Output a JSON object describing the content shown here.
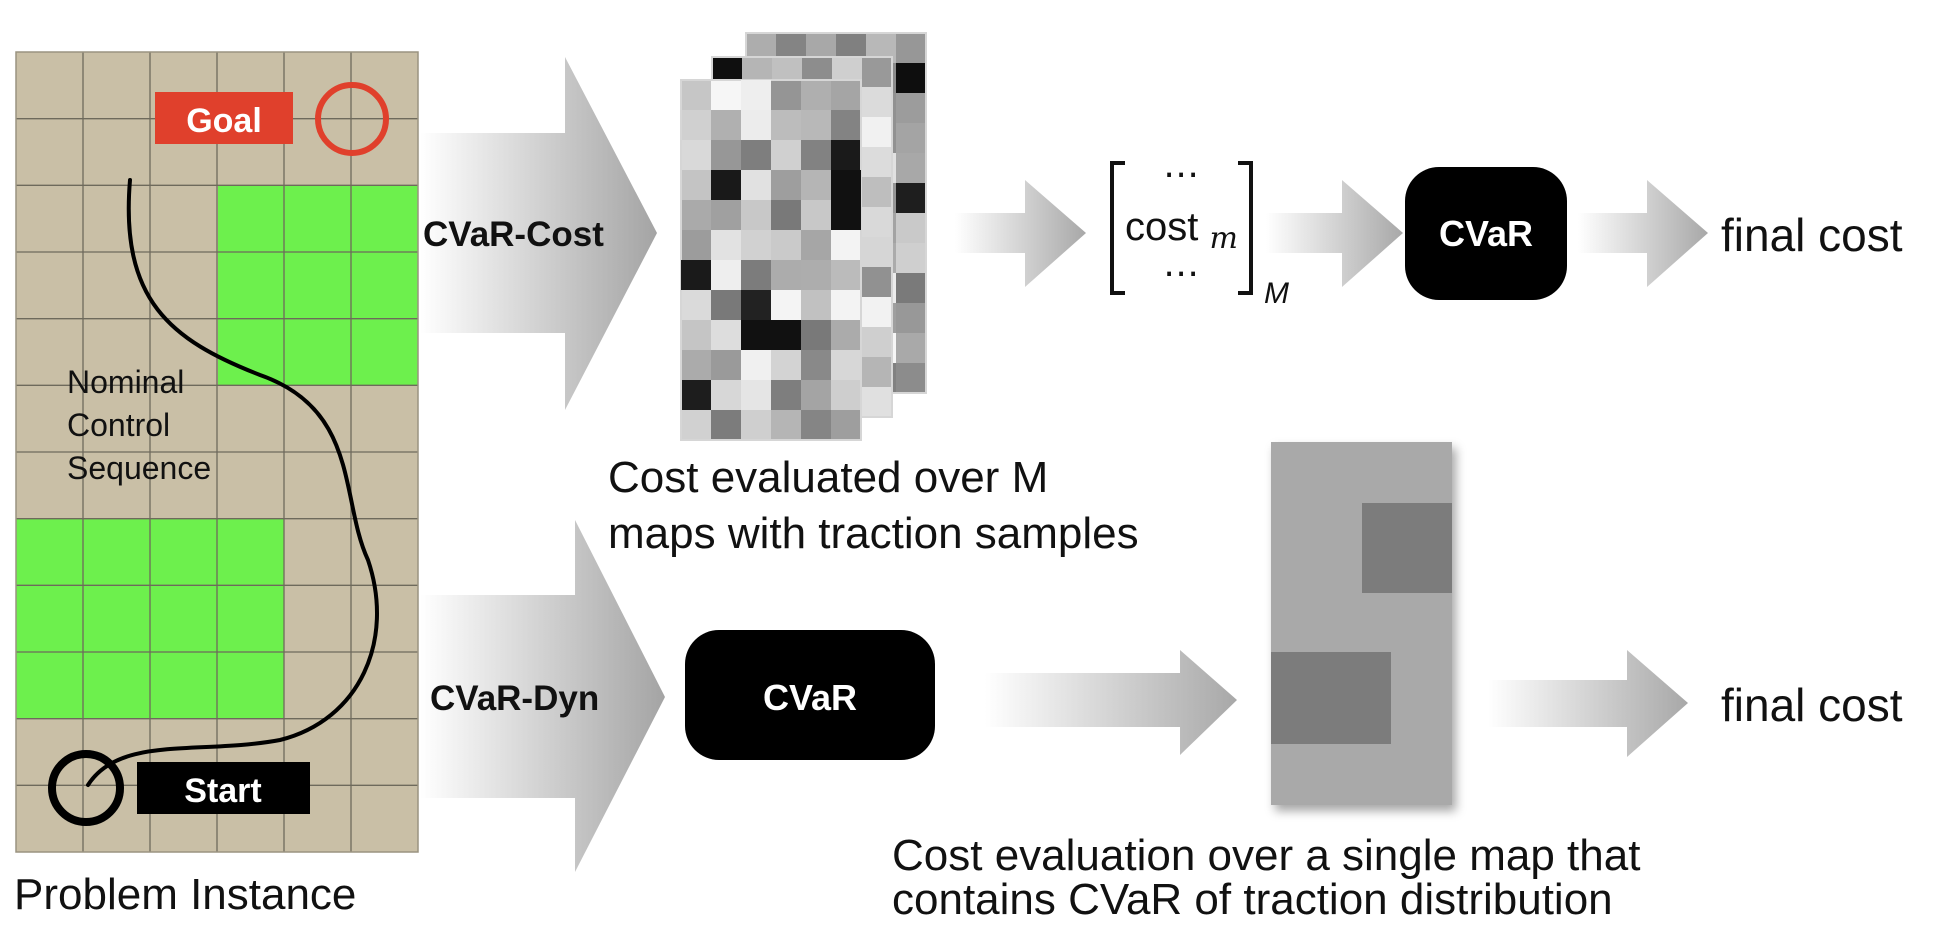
{
  "problem": {
    "caption": "Problem Instance",
    "goal_label": "Goal",
    "start_label": "Start",
    "trajectory_label": [
      "Nominal",
      "Control",
      "Sequence"
    ]
  },
  "top": {
    "method_label": "CVaR-Cost",
    "maps_caption": [
      "Cost evaluated over M",
      "maps with traction samples"
    ],
    "vector_dots": "⋯",
    "vector_cost": "cost",
    "vector_sub": "m",
    "vector_dim": "M",
    "cvar_label": "CVaR",
    "output_label": "final cost"
  },
  "bottom": {
    "method_label": "CVaR-Dyn",
    "cvar_label": "CVaR",
    "map_caption": [
      "Cost evaluation over a single map that",
      "contains CVaR of traction distribution"
    ],
    "output_label": "final cost"
  },
  "colors": {
    "terrain": "#c9bfa6",
    "obstacle": "#6df04d",
    "goal_red": "#e0402c",
    "black": "#000000",
    "arrow_gray": "#a8a8a8"
  }
}
